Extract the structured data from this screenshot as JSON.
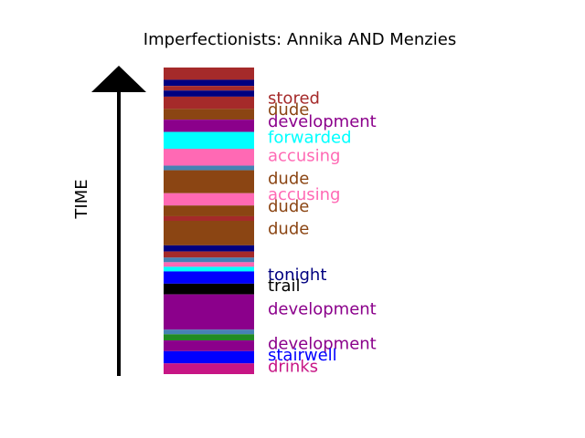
{
  "chart_data": {
    "type": "bar",
    "title": "Imperfectionists: Annika AND Menzies",
    "ylabel": "TIME",
    "segments": [
      {
        "start": 0.0,
        "end": 0.04,
        "color": "#a52a2a"
      },
      {
        "start": 0.04,
        "end": 0.06,
        "color": "#000080"
      },
      {
        "start": 0.06,
        "end": 0.075,
        "color": "#a52a2a"
      },
      {
        "start": 0.075,
        "end": 0.095,
        "color": "#000080"
      },
      {
        "start": 0.095,
        "end": 0.135,
        "color": "#a52a2a"
      },
      {
        "start": 0.135,
        "end": 0.17,
        "color": "#8b4513"
      },
      {
        "start": 0.17,
        "end": 0.21,
        "color": "#8b008b"
      },
      {
        "start": 0.21,
        "end": 0.265,
        "color": "#00ffff"
      },
      {
        "start": 0.265,
        "end": 0.32,
        "color": "#ff69b4"
      },
      {
        "start": 0.32,
        "end": 0.335,
        "color": "#4682b4"
      },
      {
        "start": 0.335,
        "end": 0.41,
        "color": "#8b4513"
      },
      {
        "start": 0.41,
        "end": 0.45,
        "color": "#ff69b4"
      },
      {
        "start": 0.45,
        "end": 0.485,
        "color": "#8b4513"
      },
      {
        "start": 0.485,
        "end": 0.5,
        "color": "#a52a2a"
      },
      {
        "start": 0.5,
        "end": 0.58,
        "color": "#8b4513"
      },
      {
        "start": 0.58,
        "end": 0.6,
        "color": "#000080"
      },
      {
        "start": 0.6,
        "end": 0.62,
        "color": "#a52a2a"
      },
      {
        "start": 0.62,
        "end": 0.635,
        "color": "#4682b4"
      },
      {
        "start": 0.635,
        "end": 0.65,
        "color": "#ff69b4"
      },
      {
        "start": 0.65,
        "end": 0.665,
        "color": "#00ffff"
      },
      {
        "start": 0.665,
        "end": 0.705,
        "color": "#0000ff"
      },
      {
        "start": 0.705,
        "end": 0.74,
        "color": "#000000"
      },
      {
        "start": 0.74,
        "end": 0.855,
        "color": "#8b008b"
      },
      {
        "start": 0.855,
        "end": 0.87,
        "color": "#4682b4"
      },
      {
        "start": 0.87,
        "end": 0.89,
        "color": "#228b22"
      },
      {
        "start": 0.89,
        "end": 0.925,
        "color": "#8b008b"
      },
      {
        "start": 0.925,
        "end": 0.965,
        "color": "#0000ff"
      },
      {
        "start": 0.965,
        "end": 1.0,
        "color": "#c71585"
      }
    ],
    "labels": [
      {
        "text": "stored",
        "pos": 0.1,
        "color": "#a52a2a"
      },
      {
        "text": "dude",
        "pos": 0.137,
        "color": "#8b4513"
      },
      {
        "text": "development",
        "pos": 0.175,
        "color": "#8b008b"
      },
      {
        "text": "forwarded",
        "pos": 0.228,
        "color": "#00ffff"
      },
      {
        "text": "accusing",
        "pos": 0.287,
        "color": "#ff69b4"
      },
      {
        "text": "dude",
        "pos": 0.362,
        "color": "#8b4513"
      },
      {
        "text": "accusing",
        "pos": 0.413,
        "color": "#ff69b4"
      },
      {
        "text": "dude",
        "pos": 0.452,
        "color": "#8b4513"
      },
      {
        "text": "dude",
        "pos": 0.525,
        "color": "#8b4513"
      },
      {
        "text": "tonight",
        "pos": 0.675,
        "color": "#000080"
      },
      {
        "text": "trail",
        "pos": 0.712,
        "color": "#000000"
      },
      {
        "text": "development",
        "pos": 0.787,
        "color": "#8b008b"
      },
      {
        "text": "development",
        "pos": 0.9,
        "color": "#8b008b"
      },
      {
        "text": "stairwell",
        "pos": 0.937,
        "color": "#0000ff"
      },
      {
        "text": "drinks",
        "pos": 0.975,
        "color": "#c71585"
      }
    ]
  }
}
